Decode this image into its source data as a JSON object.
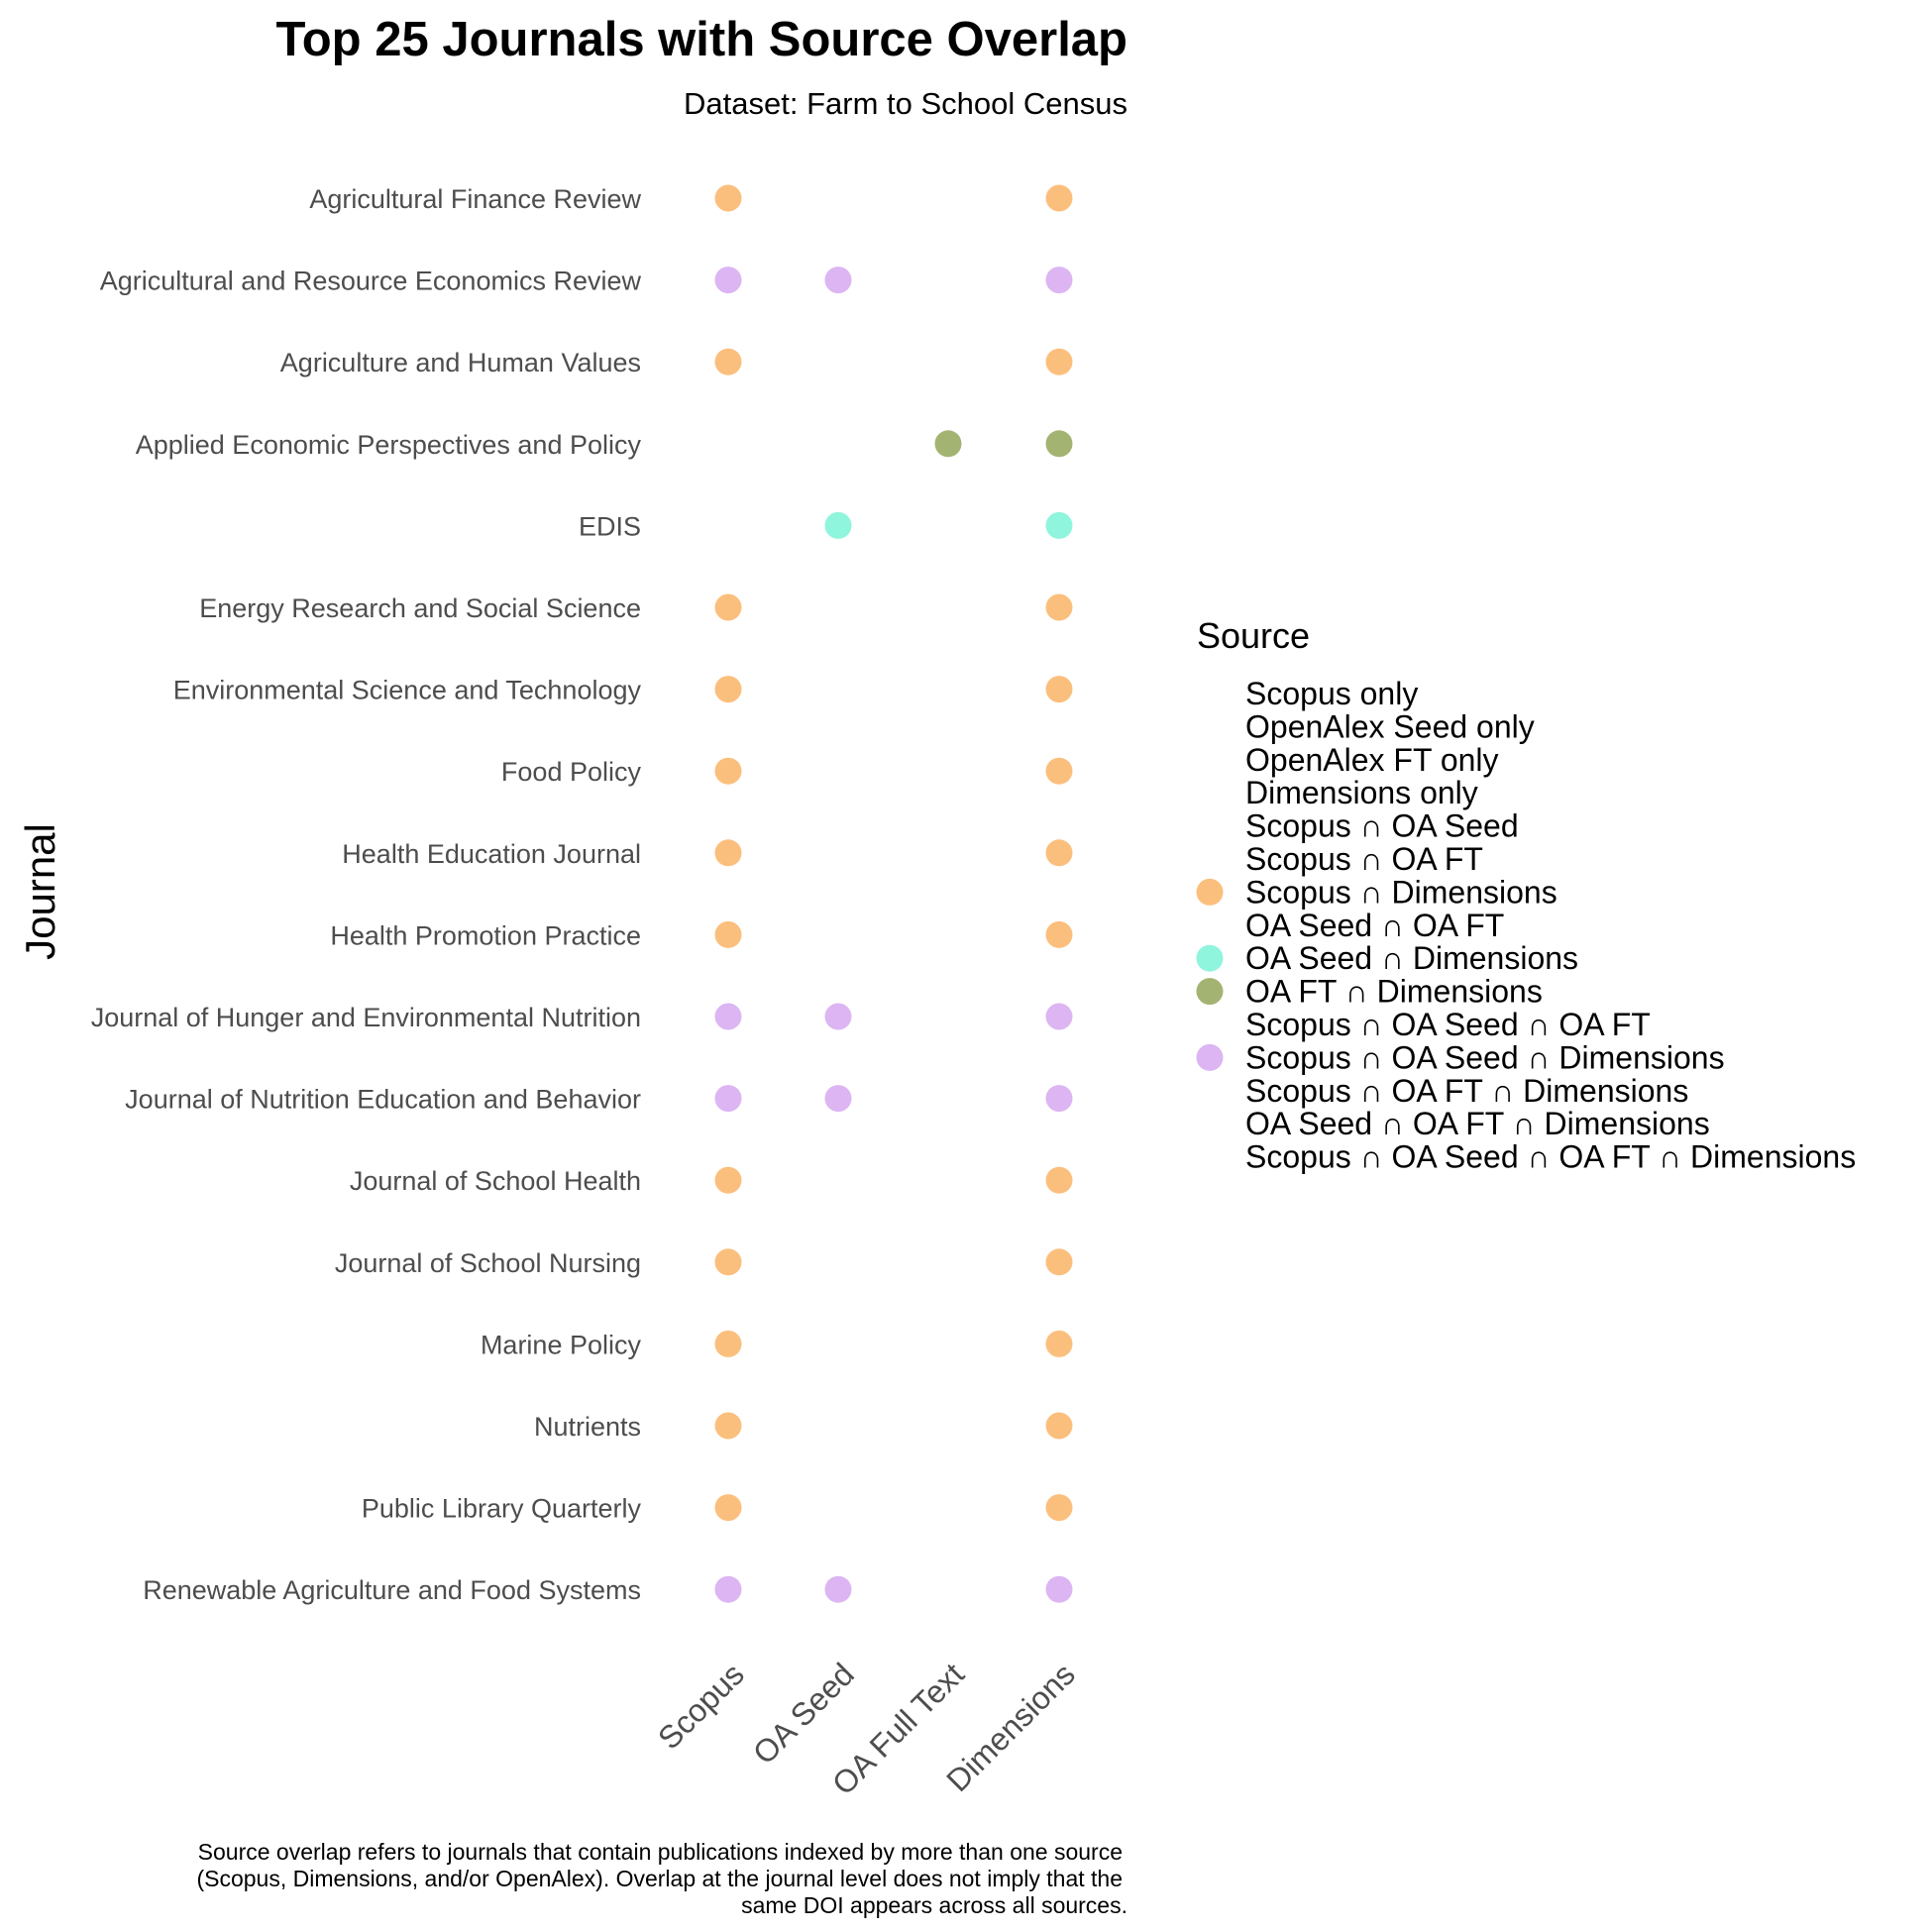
{
  "chart_data": {
    "type": "scatter",
    "title": "Top 25 Journals with Source Overlap",
    "subtitle": "Dataset: Farm to School Census",
    "xlabel": "",
    "ylabel": "Journal",
    "x_categories": [
      "Scopus",
      "OA Seed",
      "OA Full Text",
      "Dimensions"
    ],
    "y_categories": [
      "Agricultural Finance Review",
      "Agricultural and Resource Economics Review",
      "Agriculture and Human Values",
      "Applied Economic Perspectives and Policy",
      "EDIS",
      "Energy Research and Social Science",
      "Environmental Science and Technology",
      "Food Policy",
      "Health Education Journal",
      "Health Promotion Practice",
      "Journal of Hunger and Environmental Nutrition",
      "Journal of Nutrition Education and Behavior",
      "Journal of School Health",
      "Journal of School Nursing",
      "Marine Policy",
      "Nutrients",
      "Public Library Quarterly",
      "Renewable Agriculture and Food Systems"
    ],
    "points": [
      {
        "journal": "Agricultural Finance Review",
        "sources": [
          "Scopus",
          "Dimensions"
        ],
        "group": "Scopus ∩ Dimensions"
      },
      {
        "journal": "Agricultural and Resource Economics Review",
        "sources": [
          "Scopus",
          "OA Seed",
          "Dimensions"
        ],
        "group": "Scopus ∩ OA Seed ∩ Dimensions"
      },
      {
        "journal": "Agriculture and Human Values",
        "sources": [
          "Scopus",
          "Dimensions"
        ],
        "group": "Scopus ∩ Dimensions"
      },
      {
        "journal": "Applied Economic Perspectives and Policy",
        "sources": [
          "OA Full Text",
          "Dimensions"
        ],
        "group": "OA FT ∩ Dimensions"
      },
      {
        "journal": "EDIS",
        "sources": [
          "OA Seed",
          "Dimensions"
        ],
        "group": "OA Seed ∩ Dimensions"
      },
      {
        "journal": "Energy Research and Social Science",
        "sources": [
          "Scopus",
          "Dimensions"
        ],
        "group": "Scopus ∩ Dimensions"
      },
      {
        "journal": "Environmental Science and Technology",
        "sources": [
          "Scopus",
          "Dimensions"
        ],
        "group": "Scopus ∩ Dimensions"
      },
      {
        "journal": "Food Policy",
        "sources": [
          "Scopus",
          "Dimensions"
        ],
        "group": "Scopus ∩ Dimensions"
      },
      {
        "journal": "Health Education Journal",
        "sources": [
          "Scopus",
          "Dimensions"
        ],
        "group": "Scopus ∩ Dimensions"
      },
      {
        "journal": "Health Promotion Practice",
        "sources": [
          "Scopus",
          "Dimensions"
        ],
        "group": "Scopus ∩ Dimensions"
      },
      {
        "journal": "Journal of Hunger and Environmental Nutrition",
        "sources": [
          "Scopus",
          "OA Seed",
          "Dimensions"
        ],
        "group": "Scopus ∩ OA Seed ∩ Dimensions"
      },
      {
        "journal": "Journal of Nutrition Education and Behavior",
        "sources": [
          "Scopus",
          "OA Seed",
          "Dimensions"
        ],
        "group": "Scopus ∩ OA Seed ∩ Dimensions"
      },
      {
        "journal": "Journal of School Health",
        "sources": [
          "Scopus",
          "Dimensions"
        ],
        "group": "Scopus ∩ Dimensions"
      },
      {
        "journal": "Journal of School Nursing",
        "sources": [
          "Scopus",
          "Dimensions"
        ],
        "group": "Scopus ∩ Dimensions"
      },
      {
        "journal": "Marine Policy",
        "sources": [
          "Scopus",
          "Dimensions"
        ],
        "group": "Scopus ∩ Dimensions"
      },
      {
        "journal": "Nutrients",
        "sources": [
          "Scopus",
          "Dimensions"
        ],
        "group": "Scopus ∩ Dimensions"
      },
      {
        "journal": "Public Library Quarterly",
        "sources": [
          "Scopus",
          "Dimensions"
        ],
        "group": "Scopus ∩ Dimensions"
      },
      {
        "journal": "Renewable Agriculture and Food Systems",
        "sources": [
          "Scopus",
          "OA Seed",
          "Dimensions"
        ],
        "group": "Scopus ∩ OA Seed ∩ Dimensions"
      }
    ],
    "legend": {
      "title": "Source",
      "position": "right",
      "entries": [
        {
          "label": "Scopus only",
          "color": null
        },
        {
          "label": "OpenAlex Seed only",
          "color": null
        },
        {
          "label": "OpenAlex FT only",
          "color": null
        },
        {
          "label": "Dimensions only",
          "color": null
        },
        {
          "label": "Scopus ∩ OA Seed",
          "color": null
        },
        {
          "label": "Scopus ∩ OA FT",
          "color": null
        },
        {
          "label": "Scopus ∩ Dimensions",
          "color": "#fbbf7d"
        },
        {
          "label": "OA Seed ∩ OA FT",
          "color": null
        },
        {
          "label": "OA Seed ∩ Dimensions",
          "color": "#8ff5dc"
        },
        {
          "label": "OA FT ∩ Dimensions",
          "color": "#a3b472"
        },
        {
          "label": "Scopus ∩ OA Seed ∩ OA FT",
          "color": null
        },
        {
          "label": "Scopus ∩ OA Seed ∩ Dimensions",
          "color": "#dcb5f2"
        },
        {
          "label": "Scopus ∩ OA FT ∩ Dimensions",
          "color": null
        },
        {
          "label": "OA Seed ∩ OA FT ∩ Dimensions",
          "color": null
        },
        {
          "label": "Scopus ∩ OA Seed ∩ OA FT ∩ Dimensions",
          "color": null
        }
      ]
    },
    "grid": false,
    "caption": [
      "Source overlap refers to journals that contain publications indexed by more than one source",
      "(Scopus, Dimensions, and/or OpenAlex). Overlap at the journal level does not imply that the",
      "same DOI appears across all sources."
    ]
  }
}
